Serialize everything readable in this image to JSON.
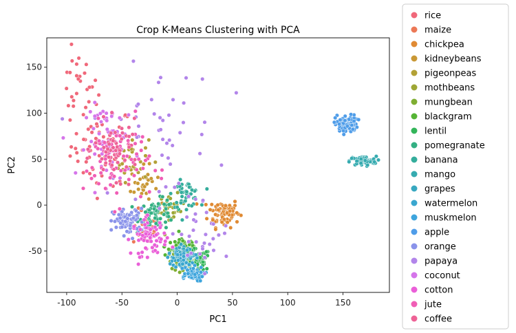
{
  "chart_data": {
    "type": "scatter",
    "title": "Crop K-Means Clustering with PCA",
    "xlabel": "PC1",
    "ylabel": "PC2",
    "xlim": [
      -118,
      192
    ],
    "ylim": [
      -95,
      182
    ],
    "xticks": [
      -100,
      -50,
      0,
      50,
      100,
      150
    ],
    "yticks": [
      -50,
      0,
      50,
      100,
      150
    ],
    "legend_position": "outside-right",
    "series": [
      {
        "name": "rice",
        "color": "#f0687a",
        "clusters": [
          {
            "cx": -68,
            "cy": 65,
            "sx": 14,
            "sy": 22,
            "n": 60
          },
          {
            "cx": -90,
            "cy": 130,
            "sx": 9,
            "sy": 18,
            "n": 25
          }
        ]
      },
      {
        "name": "maize",
        "color": "#ec7856",
        "clusters": [
          {
            "cx": -28,
            "cy": -25,
            "sx": 6,
            "sy": 10,
            "n": 25
          }
        ]
      },
      {
        "name": "chickpea",
        "color": "#e08a33",
        "clusters": [
          {
            "cx": 42,
            "cy": -8,
            "sx": 7,
            "sy": 8,
            "n": 80
          }
        ]
      },
      {
        "name": "kidneybeans",
        "color": "#c99835",
        "clusters": [
          {
            "cx": -30,
            "cy": 22,
            "sx": 6,
            "sy": 10,
            "n": 30
          }
        ]
      },
      {
        "name": "pigeonpeas",
        "color": "#b3a136",
        "clusters": [
          {
            "cx": -42,
            "cy": 50,
            "sx": 8,
            "sy": 12,
            "n": 30
          }
        ]
      },
      {
        "name": "mothbeans",
        "color": "#9ea735",
        "clusters": [
          {
            "cx": -5,
            "cy": -5,
            "sx": 6,
            "sy": 8,
            "n": 25
          }
        ]
      },
      {
        "name": "mungbean",
        "color": "#7fae32",
        "clusters": [
          {
            "cx": 5,
            "cy": -60,
            "sx": 7,
            "sy": 5,
            "n": 50
          }
        ]
      },
      {
        "name": "blackgram",
        "color": "#55b435",
        "clusters": [
          {
            "cx": 5,
            "cy": -45,
            "sx": 8,
            "sy": 5,
            "n": 50
          }
        ]
      },
      {
        "name": "lentil",
        "color": "#33b55a",
        "clusters": [
          {
            "cx": 18,
            "cy": -60,
            "sx": 6,
            "sy": 6,
            "n": 50
          }
        ]
      },
      {
        "name": "pomegranate",
        "color": "#34b083",
        "clusters": [
          {
            "cx": -18,
            "cy": -10,
            "sx": 8,
            "sy": 8,
            "n": 70
          }
        ]
      },
      {
        "name": "banana",
        "color": "#34ad9c",
        "clusters": [
          {
            "cx": 8,
            "cy": 12,
            "sx": 6,
            "sy": 7,
            "n": 50
          }
        ]
      },
      {
        "name": "mango",
        "color": "#36abb0",
        "clusters": [
          {
            "cx": 168,
            "cy": 48,
            "sx": 6,
            "sy": 2.5,
            "n": 70
          }
        ]
      },
      {
        "name": "grapes",
        "color": "#38a8c0",
        "clusters": [
          {
            "cx": 4,
            "cy": -52,
            "sx": 5,
            "sy": 5,
            "n": 60
          }
        ]
      },
      {
        "name": "watermelon",
        "color": "#3aa7cf",
        "clusters": [
          {
            "cx": 6,
            "cy": -58,
            "sx": 5,
            "sy": 5,
            "n": 50
          }
        ]
      },
      {
        "name": "muskmelon",
        "color": "#3ea5dd",
        "clusters": [
          {
            "cx": 12,
            "cy": -75,
            "sx": 6,
            "sy": 4,
            "n": 60
          }
        ]
      },
      {
        "name": "apple",
        "color": "#4f9de9",
        "clusters": [
          {
            "cx": 153,
            "cy": 88,
            "sx": 5,
            "sy": 5,
            "n": 80
          }
        ]
      },
      {
        "name": "orange",
        "color": "#8a93ea",
        "clusters": [
          {
            "cx": -44,
            "cy": -18,
            "sx": 7,
            "sy": 7,
            "n": 80
          }
        ]
      },
      {
        "name": "papaya",
        "color": "#b285ea",
        "clusters": [
          {
            "cx": -20,
            "cy": 80,
            "sx": 28,
            "sy": 35,
            "n": 45
          },
          {
            "cx": 20,
            "cy": -30,
            "sx": 14,
            "sy": 22,
            "n": 35
          }
        ]
      },
      {
        "name": "coconut",
        "color": "#d575ea",
        "clusters": [
          {
            "cx": -58,
            "cy": 70,
            "sx": 12,
            "sy": 20,
            "n": 60
          }
        ]
      },
      {
        "name": "cotton",
        "color": "#ea5fd8",
        "clusters": [
          {
            "cx": -25,
            "cy": -35,
            "sx": 8,
            "sy": 10,
            "n": 70
          }
        ]
      },
      {
        "name": "jute",
        "color": "#f05eb6",
        "clusters": [
          {
            "cx": -55,
            "cy": 45,
            "sx": 15,
            "sy": 22,
            "n": 70
          }
        ]
      },
      {
        "name": "coffee",
        "color": "#ee6296",
        "clusters": [
          {
            "cx": -55,
            "cy": 60,
            "sx": 10,
            "sy": 15,
            "n": 60
          }
        ]
      }
    ]
  }
}
